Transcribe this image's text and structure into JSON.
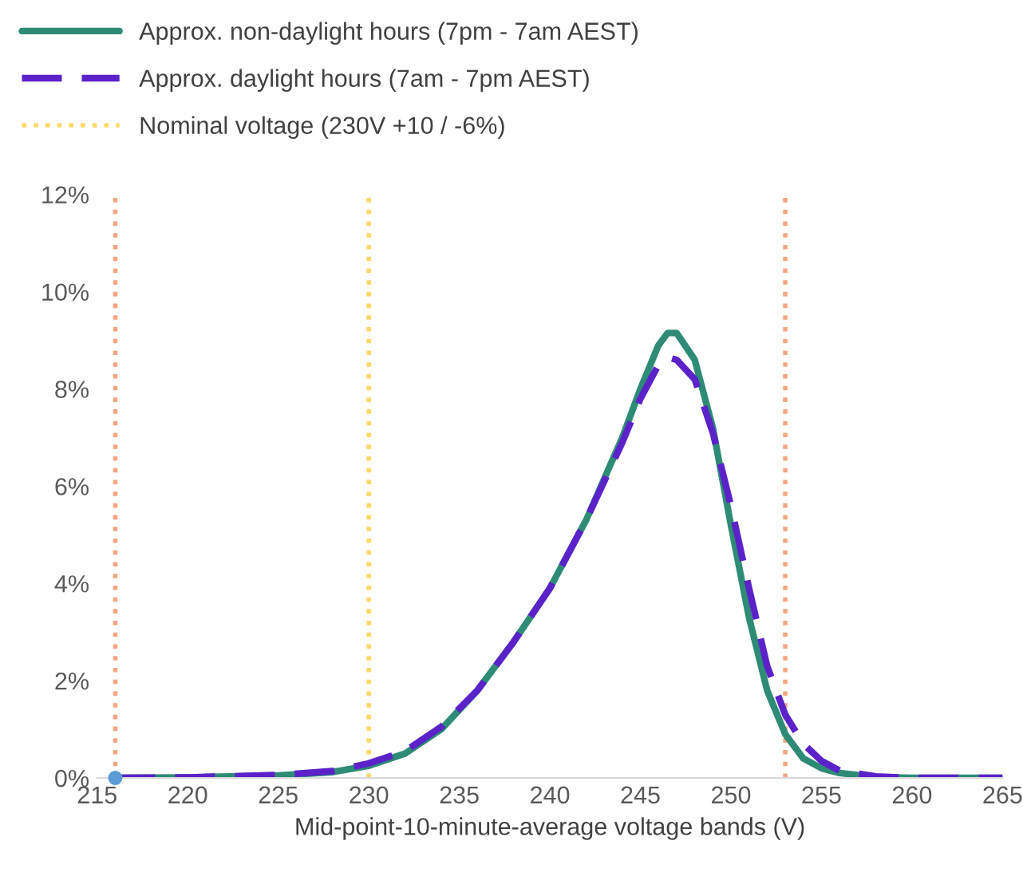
{
  "chart_data": {
    "type": "line",
    "xlabel": "Mid-point-10-minute-average voltage bands (V)",
    "xlim": [
      215,
      265
    ],
    "xticks": [
      215,
      220,
      225,
      230,
      235,
      240,
      245,
      250,
      255,
      260,
      265
    ],
    "ylim": [
      0,
      12
    ],
    "yticks": [
      {
        "value": 0,
        "label": "0%"
      },
      {
        "value": 2,
        "label": "2%"
      },
      {
        "value": 4,
        "label": "4%"
      },
      {
        "value": 6,
        "label": "6%"
      },
      {
        "value": 8,
        "label": "8%"
      },
      {
        "value": 10,
        "label": "10%"
      },
      {
        "value": 12,
        "label": "12%"
      }
    ],
    "grid": false,
    "legend": "top left",
    "series": [
      {
        "name": "Approx. non-daylight hours (7pm - 7am AEST)",
        "color": "#2e8b76",
        "line_style": "solid",
        "x": [
          216,
          220,
          225,
          228,
          230,
          232,
          234,
          236,
          238,
          240,
          242,
          244,
          245,
          246,
          246.5,
          247,
          248,
          249,
          250,
          251,
          252,
          253,
          254,
          255,
          256,
          258,
          260,
          265
        ],
        "values": [
          0,
          0.01,
          0.05,
          0.12,
          0.25,
          0.5,
          1.0,
          1.8,
          2.8,
          3.9,
          5.3,
          7.0,
          8.0,
          8.9,
          9.15,
          9.15,
          8.6,
          7.2,
          5.2,
          3.3,
          1.8,
          0.9,
          0.4,
          0.2,
          0.1,
          0.02,
          0,
          0
        ]
      },
      {
        "name": "Approx. daylight hours (7am - 7pm AEST)",
        "color": "#5b22c9",
        "line_style": "dashed",
        "x": [
          216,
          220,
          225,
          228,
          230,
          232,
          234,
          236,
          238,
          240,
          242,
          244,
          245,
          246,
          246.5,
          247,
          248,
          249,
          250,
          251,
          252,
          253,
          254,
          255,
          256,
          258,
          260,
          265
        ],
        "values": [
          0,
          0.01,
          0.06,
          0.14,
          0.3,
          0.55,
          1.05,
          1.8,
          2.8,
          3.9,
          5.3,
          6.9,
          7.8,
          8.5,
          8.65,
          8.6,
          8.2,
          7.1,
          5.6,
          3.9,
          2.3,
          1.3,
          0.7,
          0.35,
          0.15,
          0.03,
          0,
          0
        ]
      },
      {
        "type": "scatter",
        "color": "#5b9bd5",
        "marker": "circle",
        "x": [
          216
        ],
        "values": [
          0
        ]
      }
    ],
    "ref_lines": [
      {
        "axis": "x",
        "value": 216,
        "color": "#f4a582",
        "line_style": "dotted"
      },
      {
        "axis": "x",
        "value": 230,
        "label": "Nominal voltage (230V +10 / -6%)",
        "color": "#ffd966",
        "line_style": "dotted"
      },
      {
        "axis": "x",
        "value": 253,
        "color": "#f4a582",
        "line_style": "dotted"
      }
    ]
  }
}
